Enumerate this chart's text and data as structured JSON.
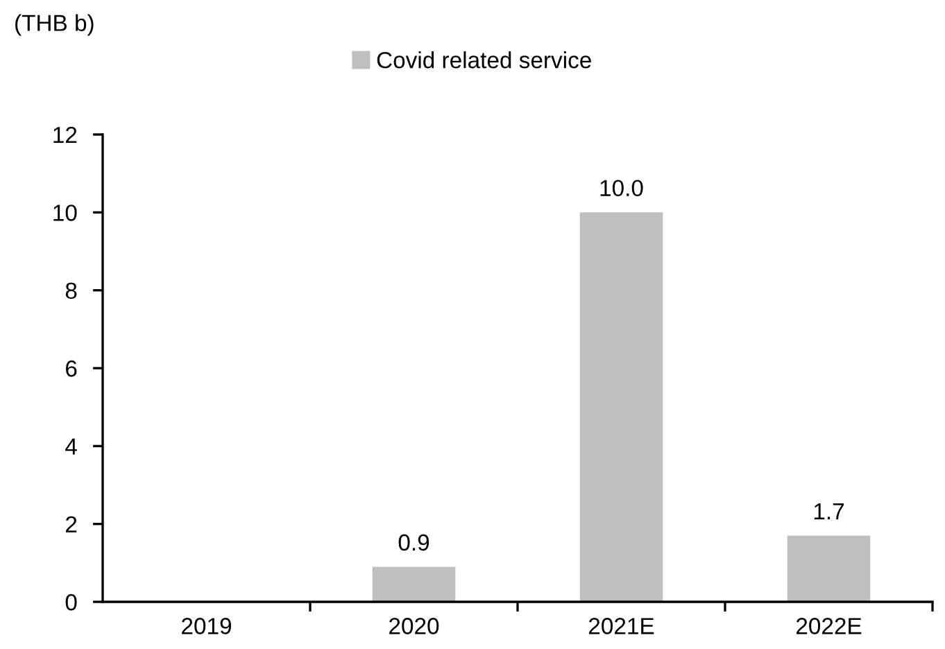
{
  "chart_data": {
    "type": "bar",
    "ylabel": "(THB b)",
    "categories": [
      "2019",
      "2020",
      "2021E",
      "2022E"
    ],
    "series": [
      {
        "name": "Covid related service",
        "color": "#bfbfbf",
        "values": [
          null,
          0.9,
          10.0,
          1.7
        ],
        "value_labels": [
          null,
          "0.9",
          "10.0",
          "1.7"
        ]
      }
    ],
    "ylim": [
      0,
      12
    ],
    "yticks": [
      0,
      2,
      4,
      6,
      8,
      10,
      12
    ],
    "grid": false,
    "legend": "top"
  }
}
